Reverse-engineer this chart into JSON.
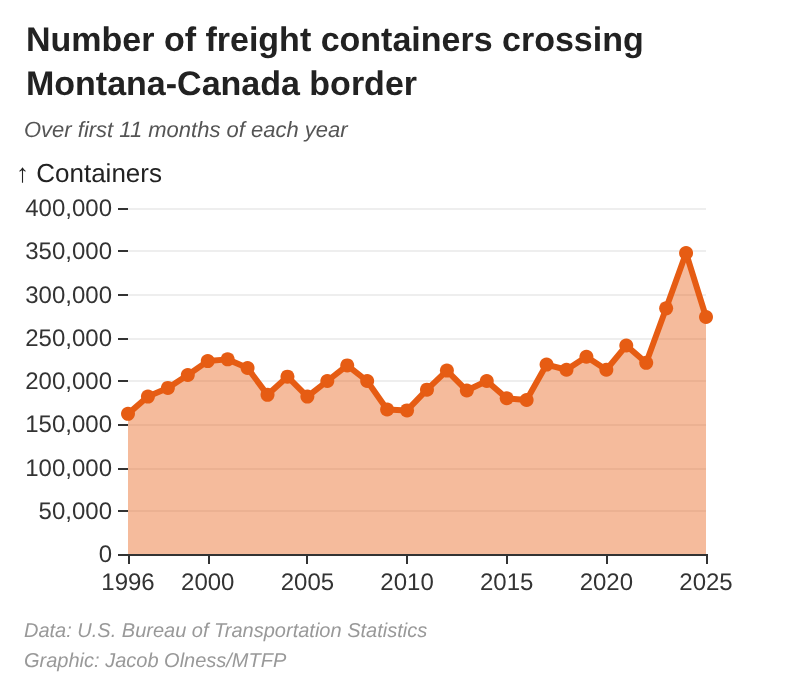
{
  "chart_data": {
    "type": "area",
    "title": "Number of freight containers crossing Montana-Canada border",
    "subtitle": "Over first 11 months of each year",
    "ylabel": "↑ Containers",
    "x": [
      1996,
      1997,
      1998,
      1999,
      2000,
      2001,
      2002,
      2003,
      2004,
      2005,
      2006,
      2007,
      2008,
      2009,
      2010,
      2011,
      2012,
      2013,
      2014,
      2015,
      2016,
      2017,
      2018,
      2019,
      2020,
      2021,
      2022,
      2023,
      2024,
      2025
    ],
    "series": [
      {
        "color": "#e65c13",
        "values": [
          162000,
          182000,
          192000,
          207000,
          223000,
          225000,
          215000,
          184000,
          205000,
          182000,
          200000,
          218000,
          200000,
          167000,
          166000,
          190000,
          212000,
          189000,
          200000,
          180000,
          178000,
          219000,
          213000,
          228000,
          213000,
          241000,
          221000,
          284000,
          348000,
          274000
        ]
      }
    ],
    "xlim": [
      1996,
      2025
    ],
    "xticks": [
      1996,
      2000,
      2005,
      2010,
      2015,
      2020,
      2025
    ],
    "ylim": [
      0,
      400000
    ],
    "yticks": [
      0,
      {
        "value": 50000,
        "label": "50,000"
      },
      {
        "value": 100000,
        "label": "100,000"
      },
      {
        "value": 150000,
        "label": "150,000"
      },
      {
        "value": 200000,
        "label": "200,000"
      },
      {
        "value": 250000,
        "label": "250,000"
      },
      {
        "value": 300000,
        "label": "300,000"
      },
      {
        "value": 350000,
        "label": "350,000"
      },
      {
        "value": 400000,
        "label": "400,000"
      }
    ],
    "grid": "y",
    "marker": "circle",
    "line_style": "solid",
    "annotations": [
      "Data: U.S. Bureau of Transportation Statistics",
      "Graphic: Jacob Olness/MTFP"
    ]
  }
}
